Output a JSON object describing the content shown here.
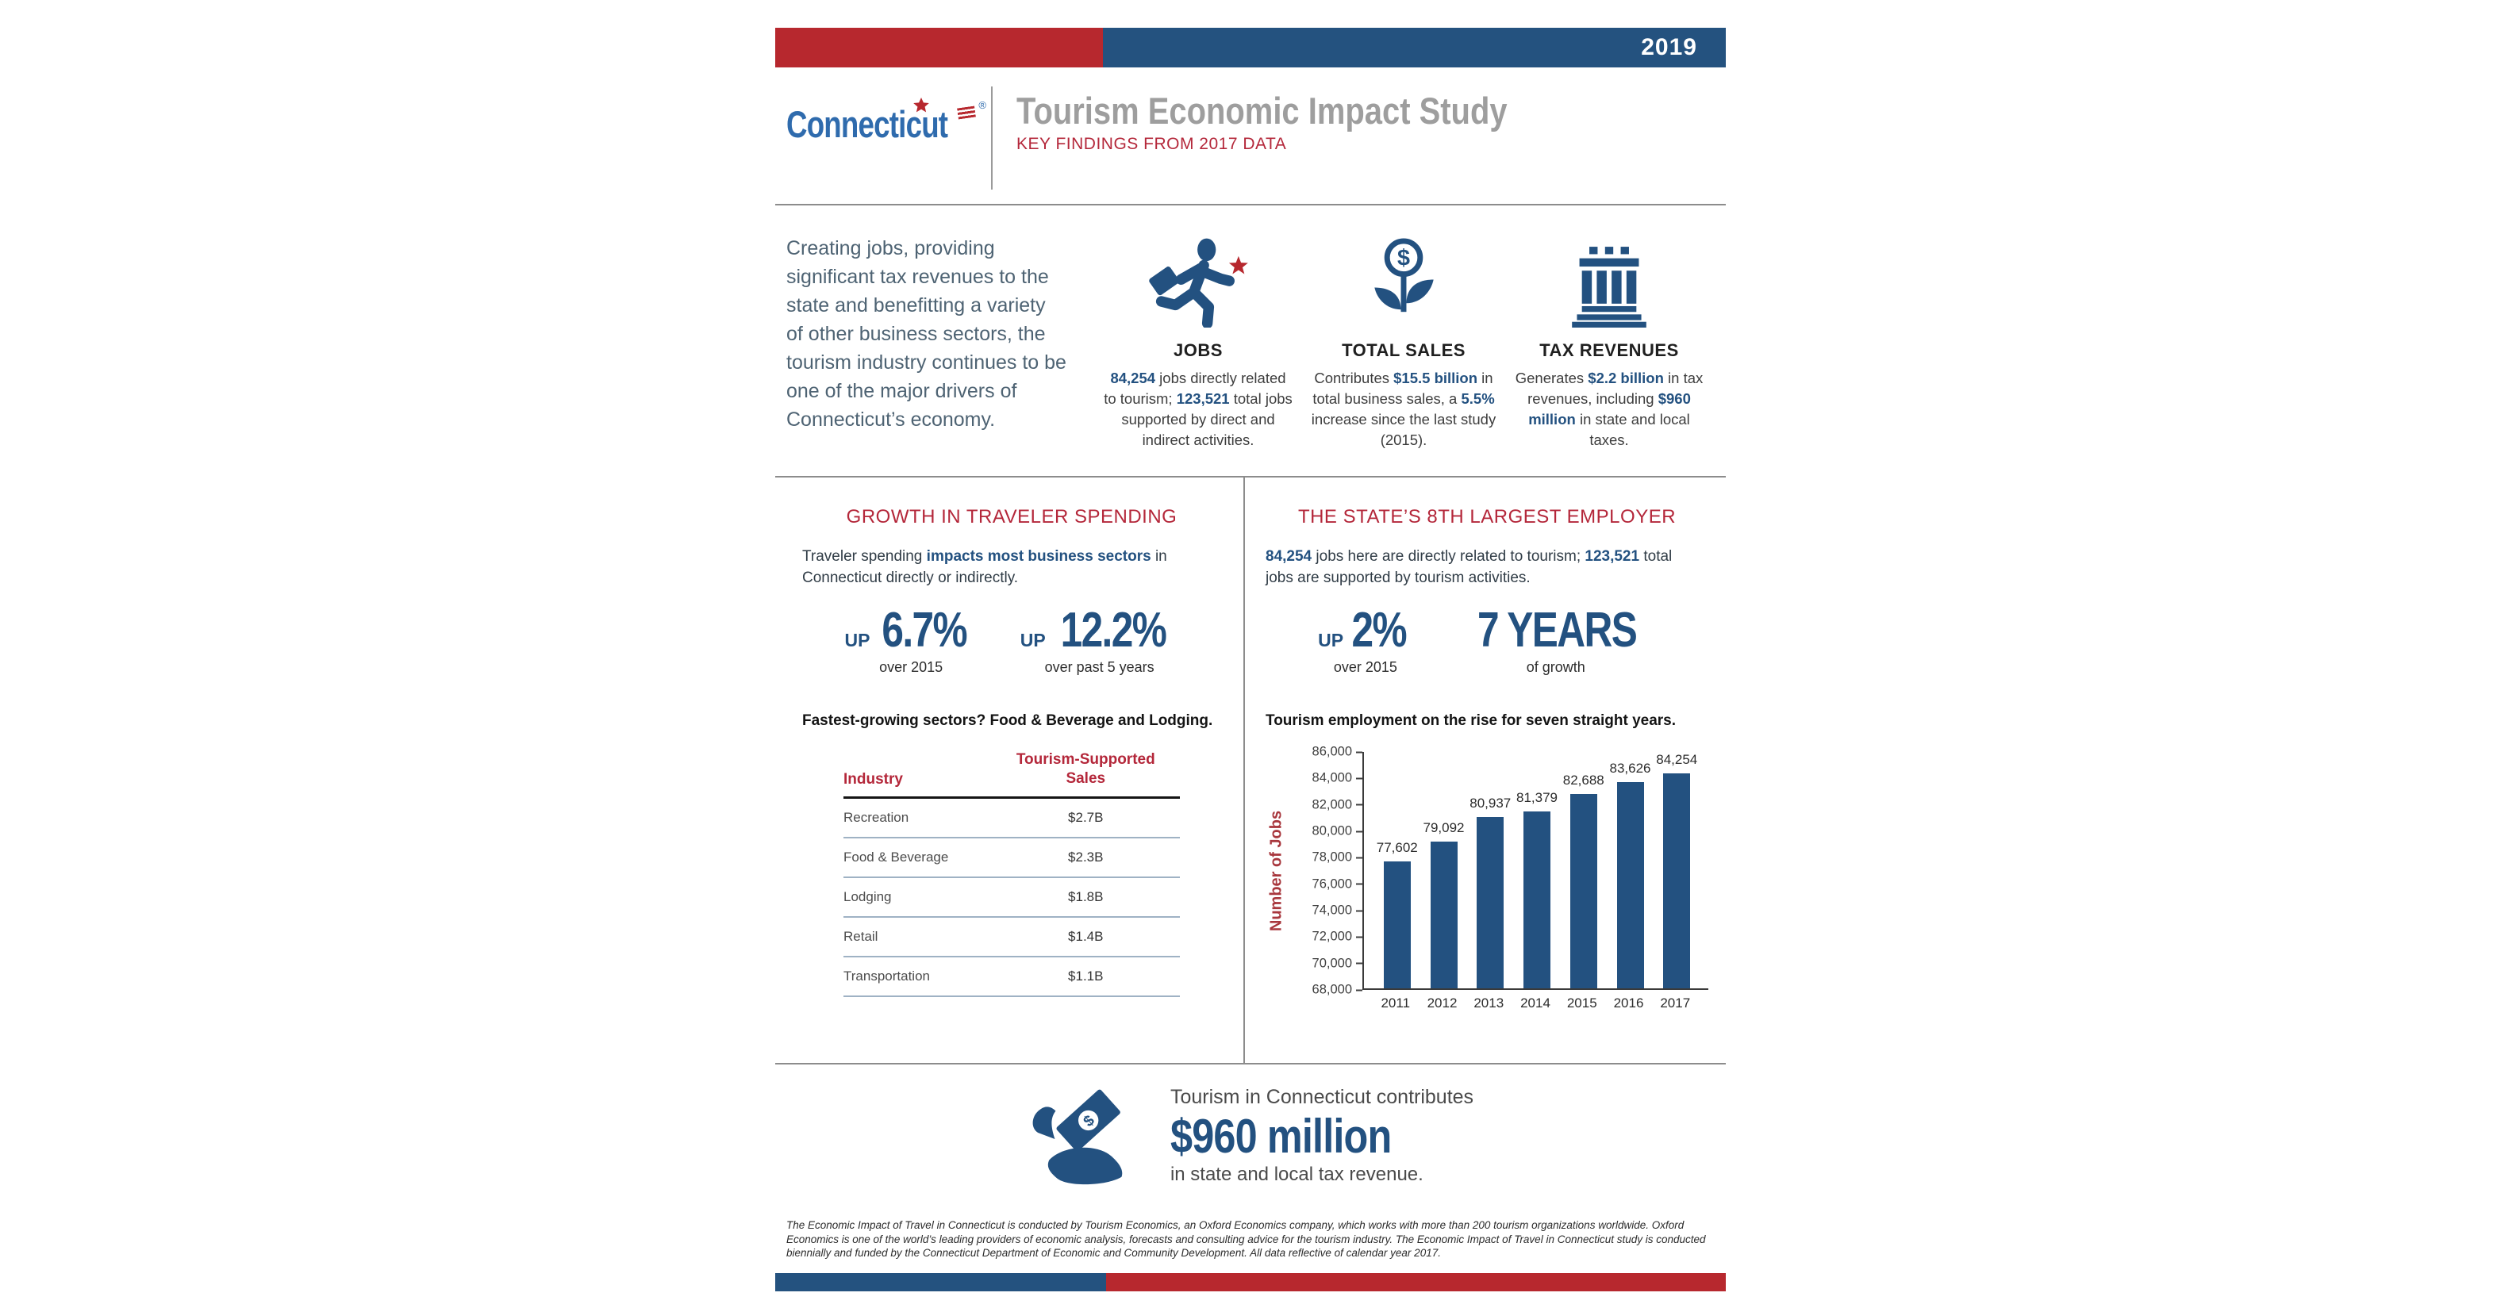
{
  "topbar": {
    "year": "2019"
  },
  "header": {
    "logo_text": "Connecticut",
    "logo_reg": "®",
    "title": "Tourism Economic Impact Study",
    "subtitle": "KEY FINDINGS FROM 2017 DATA"
  },
  "intro": {
    "paragraph": "Creating jobs, providing significant tax revenues to the state and benefitting a variety of other business sectors, the tourism industry continues to be one of the major drivers of Connecticut’s economy.",
    "cards": [
      {
        "icon": "running-businessman-icon",
        "title": "JOBS",
        "desc_segments": [
          {
            "t": "84,254",
            "em": 1
          },
          {
            "t": " jobs directly related to tourism; "
          },
          {
            "t": "123,521",
            "em": 1
          },
          {
            "t": " total jobs supported by direct and indirect activities."
          }
        ]
      },
      {
        "icon": "dollar-plant-icon",
        "title": "TOTAL SALES",
        "desc_segments": [
          {
            "t": "Contributes "
          },
          {
            "t": "$15.5 billion",
            "em": 1
          },
          {
            "t": " in total business sales, a "
          },
          {
            "t": "5.5%",
            "em": 1
          },
          {
            "t": " increase since the last study (2015)."
          }
        ]
      },
      {
        "icon": "bank-columns-icon",
        "title": "TAX REVENUES",
        "desc_segments": [
          {
            "t": "Generates "
          },
          {
            "t": "$2.2 billion",
            "em": 1
          },
          {
            "t": " in tax revenues, including "
          },
          {
            "t": "$960 million",
            "em": 1
          },
          {
            "t": " in state and local taxes."
          }
        ]
      }
    ]
  },
  "left_column": {
    "heading": "GROWTH IN TRAVELER SPENDING",
    "para_segments": [
      {
        "t": "Traveler spending "
      },
      {
        "t": "impacts most business sectors",
        "em": 1
      },
      {
        "t": " in Connecticut directly or indirectly."
      }
    ],
    "stats": [
      {
        "up": "UP",
        "value": "6.7%",
        "caption": "over 2015"
      },
      {
        "up": "UP",
        "value": "12.2%",
        "caption": "over past 5 years"
      }
    ],
    "lead": "Fastest-growing sectors? Food & Beverage and Lodging.",
    "spending_table": {
      "col1_header": "Industry",
      "col2_header": "Tourism-Supported\nSales",
      "rows": [
        [
          "Recreation",
          "$2.7B"
        ],
        [
          "Food & Beverage",
          "$2.3B"
        ],
        [
          "Lodging",
          "$1.8B"
        ],
        [
          "Retail",
          "$1.4B"
        ],
        [
          "Transportation",
          "$1.1B"
        ]
      ]
    }
  },
  "right_column": {
    "heading": "THE STATE’S 8TH LARGEST EMPLOYER",
    "para_segments": [
      {
        "t": "84,254",
        "em": 1
      },
      {
        "t": " jobs here are directly related to tourism; "
      },
      {
        "t": "123,521",
        "em": 1
      },
      {
        "t": " total jobs are supported by tourism activities."
      }
    ],
    "stats": [
      {
        "up": "UP",
        "value": "2%",
        "caption": "over 2015"
      },
      {
        "up": "",
        "value": "7 YEARS",
        "caption": "of growth"
      }
    ]
  },
  "chart_data": {
    "type": "bar",
    "title": "Tourism employment on the rise for seven straight years.",
    "xlabel": "",
    "ylabel": "Number of Jobs",
    "categories": [
      "2011",
      "2012",
      "2013",
      "2014",
      "2015",
      "2016",
      "2017"
    ],
    "values": [
      77602,
      79092,
      80937,
      81379,
      82688,
      83626,
      84254
    ],
    "value_labels": [
      "77,602",
      "79,092",
      "80,937",
      "81,379",
      "82,688",
      "83,626",
      "84,254"
    ],
    "ylim": [
      68000,
      86000
    ],
    "ytick_step": 2000,
    "bar_color": "#235180",
    "grid": false,
    "legend_position": "none"
  },
  "callout": {
    "icon": "hand-money-icon",
    "line1": "Tourism in Connecticut contributes",
    "value": "$960 million",
    "line2": "in state and local tax revenue."
  },
  "footer": {
    "disclaimer": "The Economic Impact of Travel in Connecticut is conducted by Tourism Economics, an Oxford Economics company, which works with more than 200 tourism organizations worldwide. Oxford Economics is one of the world’s leading providers of economic analysis, forecasts and consulting advice for the tourism industry. The Economic Impact of Travel in Connecticut study is conducted biennially and funded by the Connecticut Department of Economic and Community Development. All data reflective of calendar year 2017."
  },
  "colors": {
    "brand_red": "#b7282e",
    "bar_blue": "#24527f",
    "accent_blue": "#235180",
    "heading_red": "#b4273a",
    "axis_label_red": "#a8373d",
    "title_gray": "#9e9e9e"
  }
}
